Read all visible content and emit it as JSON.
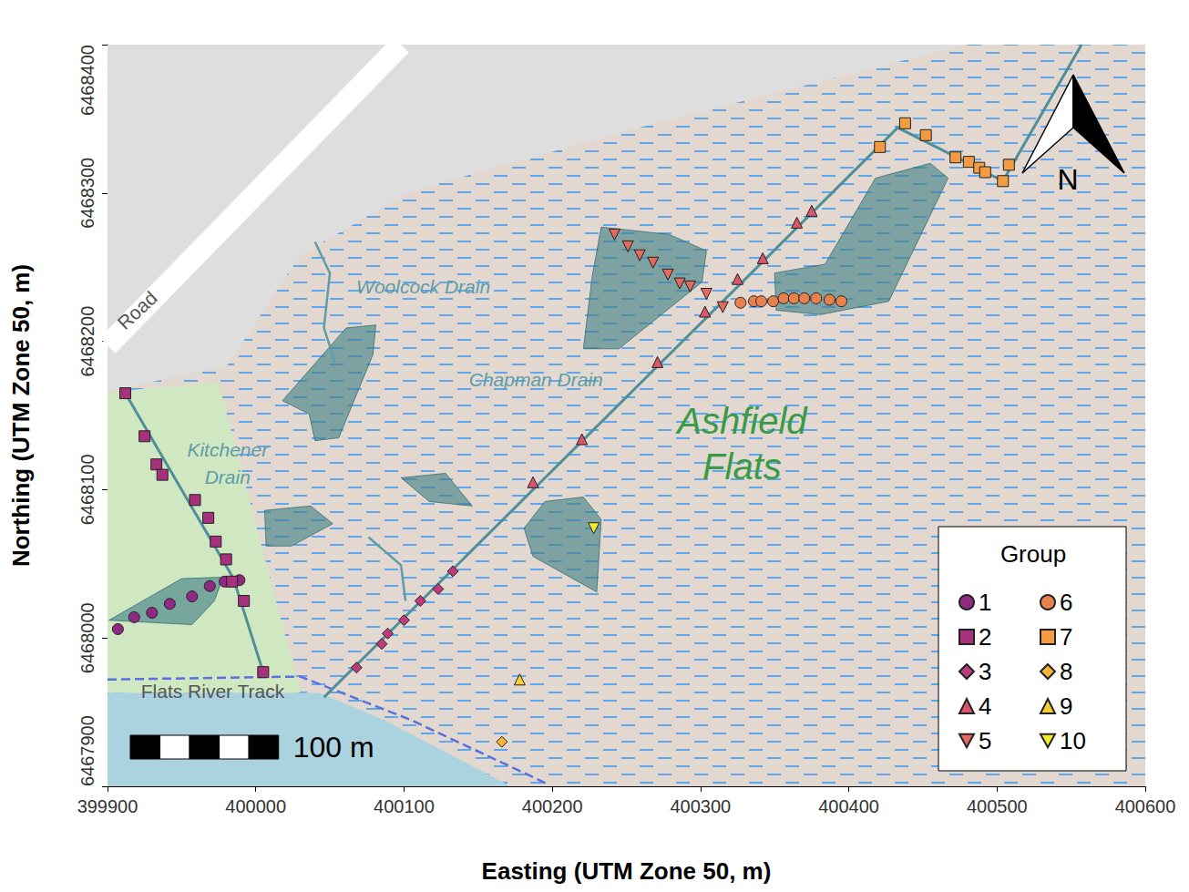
{
  "chart_data": {
    "type": "scatter",
    "x_label": "Easting (UTM Zone 50, m)",
    "y_label": "Northing (UTM Zone 50, m)",
    "xlim": [
      399900,
      400600
    ],
    "ylim": [
      6467900,
      6468400
    ],
    "xticks": [
      399900,
      400000,
      400100,
      400200,
      400300,
      400400,
      400500,
      400600
    ],
    "yticks": [
      6467900,
      6468000,
      6468100,
      6468200,
      6468300,
      6468400
    ],
    "grid": false,
    "legend": "bottom-right",
    "legend_title": "Group",
    "series": [
      {
        "name": "1",
        "color": "#8E2A81",
        "marker": "circle",
        "x": [
          399907,
          399918,
          399930,
          399942,
          399957,
          399969,
          399979,
          399989
        ],
        "y": [
          6468006,
          6468014,
          6468017,
          6468023,
          6468028,
          6468035,
          6468038,
          6468039
        ]
      },
      {
        "name": "2",
        "color": "#A7317D",
        "marker": "square",
        "x": [
          399912,
          399925,
          399933,
          399937,
          399959,
          399968,
          399973,
          399980,
          399984,
          399992,
          400005
        ],
        "y": [
          6468165,
          6468136,
          6468117,
          6468110,
          6468093,
          6468081,
          6468065,
          6468053,
          6468038,
          6468025,
          6467977
        ]
      },
      {
        "name": "3",
        "color": "#BE3C7C",
        "marker": "diamond",
        "x": [
          400068,
          400085,
          400089,
          400100,
          400111,
          400123,
          400133
        ],
        "y": [
          6467980,
          6467996,
          6468003,
          6468012,
          6468025,
          6468033,
          6468045
        ]
      },
      {
        "name": "4",
        "color": "#D9566B",
        "marker": "triangle-up",
        "x": [
          400187,
          400220,
          400271,
          400303,
          400325,
          400342,
          400365,
          400375
        ],
        "y": [
          6468105,
          6468134,
          6468186,
          6468220,
          6468242,
          6468256,
          6468280,
          6468288
        ]
      },
      {
        "name": "5",
        "color": "#E36A5C",
        "marker": "triangle-down",
        "x": [
          400242,
          400251,
          400259,
          400268,
          400278,
          400286,
          400293,
          400304,
          400315
        ],
        "y": [
          6468272,
          6468264,
          6468258,
          6468253,
          6468245,
          6468239,
          6468237,
          6468232,
          6468223
        ]
      },
      {
        "name": "6",
        "color": "#E9814E",
        "marker": "circle",
        "x": [
          400327,
          400336,
          400341,
          400349,
          400356,
          400363,
          400370,
          400378,
          400387,
          400395
        ],
        "y": [
          6468226,
          6468227,
          6468227,
          6468227,
          6468229,
          6468229,
          6468229,
          6468229,
          6468228,
          6468227
        ]
      },
      {
        "name": "7",
        "color": "#F39B42",
        "marker": "square",
        "x": [
          400421,
          400438,
          400452,
          400472,
          400481,
          400488,
          400492,
          400504,
          400508
        ],
        "y": [
          6468331,
          6468347,
          6468339,
          6468324,
          6468321,
          6468317,
          6468314,
          6468308,
          6468319
        ]
      },
      {
        "name": "8",
        "color": "#F7B33A",
        "marker": "diamond",
        "x": [
          400166
        ],
        "y": [
          6467930
        ]
      },
      {
        "name": "9",
        "color": "#F5CF33",
        "marker": "triangle-up",
        "x": [
          400178
        ],
        "y": [
          6467972
        ]
      },
      {
        "name": "10",
        "color": "#F0EB2B",
        "marker": "triangle-down",
        "x": [
          400228
        ],
        "y": [
          6468074
        ]
      }
    ],
    "transects": [
      {
        "x": [
          399912,
          399985,
          400005
        ],
        "y": [
          6468165,
          6468040,
          6467977
        ]
      },
      {
        "x": [
          400046,
          400433,
          400467,
          400504,
          400557
        ],
        "y": [
          6467960,
          6468344,
          6468327,
          6468308,
          6468400
        ]
      }
    ],
    "map": {
      "urban_area": {
        "x": [
          399900,
          400479,
          400258,
          400104,
          400030,
          399981,
          399900
        ],
        "y": [
          6468400,
          6468400,
          6468344,
          6468301,
          6468258,
          6468184,
          6468166
        ]
      },
      "vegetation": {
        "x": [
          399900,
          399975,
          400030,
          399900
        ],
        "y": [
          6468166,
          6468172,
          6467963,
          6467963
        ]
      },
      "river": {
        "x": [
          399900,
          400043,
          400086,
          400172,
          399900
        ],
        "y": [
          6467963,
          6467963,
          6467945,
          6467900,
          6467900
        ]
      },
      "ponds": [
        {
          "x": [
            400018,
            400061,
            400081,
            400079,
            400056,
            400040,
            400036
          ],
          "y": [
            6468160,
            6468209,
            6468211,
            6468191,
            6468135,
            6468133,
            6468151
          ]
        },
        {
          "x": [
            400098,
            400128,
            400146,
            400117
          ],
          "y": [
            6468108,
            6468111,
            6468089,
            6468092
          ]
        },
        {
          "x": [
            400006,
            400037,
            400052,
            400024,
            400007
          ],
          "y": [
            6468086,
            6468089,
            6468077,
            6468062,
            6468062
          ]
        },
        {
          "x": [
            400195,
            400221,
            400233,
            400230,
            400187,
            400181
          ],
          "y": [
            6468092,
            6468095,
            6468080,
            6468031,
            6468055,
            6468074
          ]
        },
        {
          "x": [
            400233,
            400279,
            400304,
            400301,
            400245,
            400221,
            400227
          ],
          "y": [
            6468277,
            6468272,
            6468261,
            6468240,
            6468195,
            6468195,
            6468244
          ]
        },
        {
          "x": [
            400350,
            400384,
            400418,
            400455,
            400467,
            400427,
            400381,
            400351
          ],
          "y": [
            6468246,
            6468252,
            6468310,
            6468320,
            6468310,
            6468227,
            6468218,
            6468221
          ]
        },
        {
          "x": [
            399901,
            399950,
            399978,
            399972,
            399957
          ],
          "y": [
            6468012,
            6468040,
            6468041,
            6468025,
            6468009
          ]
        }
      ],
      "road": {
        "x": [
          399900,
          400098
        ],
        "y": [
          6468197,
          6468400
        ],
        "label": "Road",
        "label_x": 399920,
        "label_y": 6468221
      },
      "track": {
        "x": [
          399900,
          400030,
          400104,
          400196
        ],
        "y": [
          6467972,
          6467974,
          6467945,
          6467902
        ],
        "label": "Flats River Track",
        "label_x": 399971,
        "label_y": 6467964
      },
      "drains": [
        {
          "x": [
            400040,
            400050,
            400046,
            400054
          ],
          "y": [
            6468267,
            6468246,
            6468209,
            6468184
          ],
          "label": "Woolcock Drain",
          "label_x": 400113,
          "label_y": 6468237
        },
        {
          "x": [
            400076,
            400098,
            400101
          ],
          "y": [
            6468068,
            6468049,
            6468025
          ],
          "label": "Chapman Drain",
          "label_x": 400189,
          "label_y": 6468174
        },
        {
          "x": [],
          "y": [],
          "label": "Kitchener\nDrain",
          "label_x": 399981,
          "label_y": 6468118
        }
      ],
      "place_label": {
        "text": "Ashfield\nFlats",
        "x": 400328,
        "y": 6468131
      }
    },
    "scale_bar": {
      "length": 100,
      "label": "100 m"
    },
    "north_arrow": "N"
  }
}
